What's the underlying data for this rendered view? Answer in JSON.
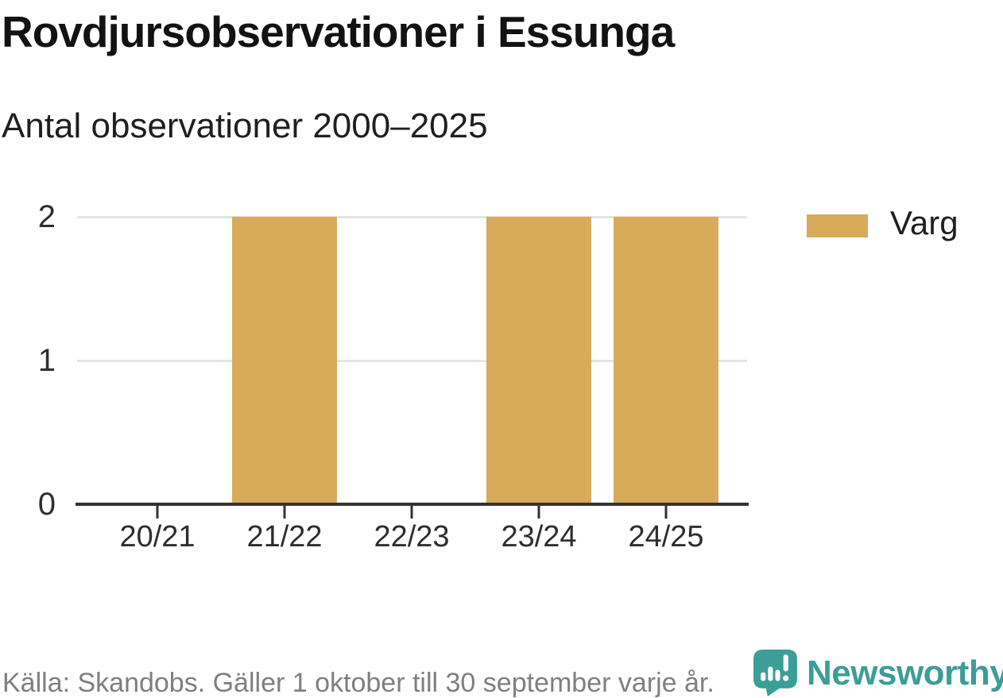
{
  "header": {
    "title": "Rovdjursobservationer i Essunga",
    "subtitle": "Antal observationer 2000–2025"
  },
  "chart_data": {
    "type": "bar",
    "title": "Rovdjursobservationer i Essunga",
    "subtitle": "Antal observationer 2000–2025",
    "categories": [
      "20/21",
      "21/22",
      "22/23",
      "23/24",
      "24/25"
    ],
    "series": [
      {
        "name": "Varg",
        "color": "#d8ab5a",
        "values": [
          0,
          2,
          0,
          2,
          2
        ]
      }
    ],
    "xlabel": "",
    "ylabel": "",
    "ylim": [
      0,
      2
    ],
    "yticks": [
      0,
      1,
      2
    ],
    "grid": true,
    "legend_position": "top-right",
    "colors": {
      "bar": "#d8ab5a",
      "axis": "#333333",
      "gridline": "#e4e4e2",
      "tick_text": "#2e2e2e"
    }
  },
  "legend": {
    "items": [
      {
        "label": "Varg",
        "color": "#d8ab5a"
      }
    ]
  },
  "footer": {
    "source": "Källa: Skandobs. Gäller 1 oktober till 30 september varje år.",
    "brand": "Newsworthy",
    "brand_color": "#3b9e97"
  }
}
